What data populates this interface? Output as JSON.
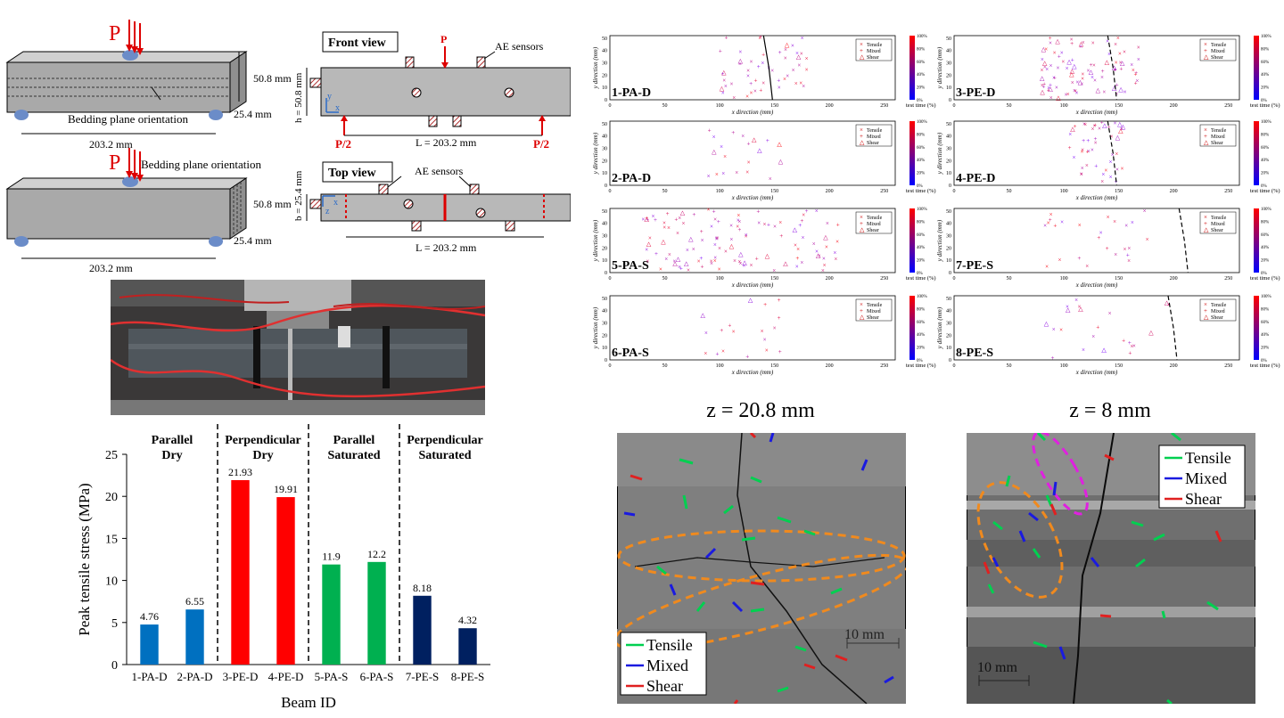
{
  "schematics": {
    "load_label": "P",
    "half_load_label": "P/2",
    "dim_height": "50.8 mm",
    "dim_width": "25.4 mm",
    "dim_length": "203.2 mm",
    "bedding_plane_label": "Bedding plane orientation",
    "front_view_title": "Front view",
    "top_view_title": "Top view",
    "ae_sensors_label": "AE sensors",
    "h_label": "h = 50.8 mm",
    "b_label": "b = 25.4 mm",
    "L_label": "L = 203.2 mm",
    "axis_x": "x",
    "axis_y": "y",
    "axis_z": "z"
  },
  "colors": {
    "blue": "#0070c0",
    "red": "#ff0000",
    "green": "#00b050",
    "navy": "#002060",
    "orange": "#f08a1e",
    "magenta": "#e020e0"
  },
  "bar_chart": {
    "group_labels": [
      [
        "Parallel",
        "Dry"
      ],
      [
        "Perpendicular",
        "Dry"
      ],
      [
        "Parallel",
        "Saturated"
      ],
      [
        "Perpendicular",
        "Saturated"
      ]
    ],
    "y_ticks": [
      "0",
      "5",
      "10",
      "15",
      "20",
      "25"
    ]
  },
  "chart_data": [
    {
      "type": "bar",
      "title": "",
      "xlabel": "Beam ID",
      "ylabel": "Peak tensile stress (MPa)",
      "ylim": [
        0,
        25
      ],
      "categories": [
        "1-PA-D",
        "2-PA-D",
        "3-PE-D",
        "4-PE-D",
        "5-PA-S",
        "6-PA-S",
        "7-PE-S",
        "8-PE-S"
      ],
      "values": [
        4.76,
        6.55,
        21.93,
        19.91,
        11.9,
        12.2,
        8.18,
        4.32
      ],
      "value_labels": [
        "4.76",
        "6.55",
        "21.93",
        "19.91",
        "11.9",
        "12.2",
        "8.18",
        "4.32"
      ],
      "bar_colors": [
        "#0070c0",
        "#0070c0",
        "#ff0000",
        "#ff0000",
        "#00b050",
        "#00b050",
        "#002060",
        "#002060"
      ]
    },
    {
      "type": "scatter",
      "panels": [
        "1-PA-D",
        "3-PE-D",
        "2-PA-D",
        "4-PE-D",
        "5-PA-S",
        "7-PE-S",
        "6-PA-S",
        "8-PE-S"
      ],
      "xlabel": "x direction (mm)",
      "ylabel": "y direction (mm)",
      "xlim": [
        0,
        260
      ],
      "ylim": [
        0,
        52
      ],
      "x_ticks": [
        "0",
        "50",
        "100",
        "150",
        "200",
        "250"
      ],
      "y_ticks": [
        "0",
        "10",
        "20",
        "30",
        "40",
        "50"
      ],
      "legend": [
        "Tensile",
        "Mixed",
        "Shear"
      ],
      "colorbar_label": "test time (%)",
      "colorbar_ticks": [
        "0%",
        "20%",
        "40%",
        "60%",
        "80%",
        "100%"
      ]
    }
  ],
  "ct_images": [
    {
      "title": "z = 20.8 mm",
      "scale_label": "10 mm",
      "legend": [
        "Tensile",
        "Mixed",
        "Shear"
      ]
    },
    {
      "title": "z = 8 mm",
      "scale_label": "10 mm",
      "legend": [
        "Tensile",
        "Mixed",
        "Shear"
      ]
    }
  ]
}
